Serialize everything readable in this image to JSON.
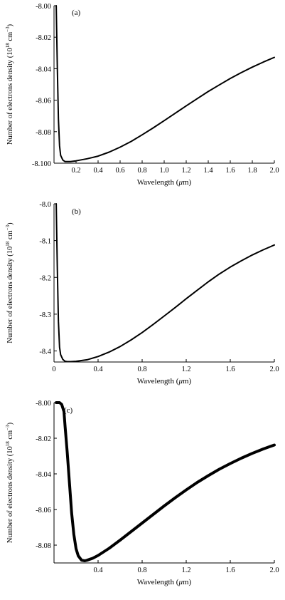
{
  "chart_data": [
    {
      "type": "line",
      "panel_label": "(a)",
      "xlabel_prefix": "Wavelength (",
      "xlabel_mu": "μ",
      "xlabel_suffix": "m)",
      "ylabel": "Number of electrons density (10",
      "ylabel_exp": "18",
      "ylabel_unit": " cm",
      "ylabel_unit_exp": "−3",
      "ylabel_close": ")",
      "xlim": [
        0.0,
        2.0
      ],
      "ylim": [
        -8.1,
        -8.0
      ],
      "xticks": [
        0.2,
        0.4,
        0.6,
        0.8,
        1.0,
        1.2,
        1.4,
        1.6,
        1.8,
        2.0
      ],
      "xtick_labels": [
        "0.2",
        "0.4",
        "0.6",
        "0.8",
        "1.0",
        "1.2",
        "1.4",
        "1.6",
        "1.8",
        "2.0"
      ],
      "yticks": [
        -8.1,
        -8.08,
        -8.06,
        -8.04,
        -8.02,
        -8.0
      ],
      "ytick_labels": [
        "-8.100",
        "-8.08",
        "-8.06",
        "-8.04",
        "-8.02",
        "-8.00"
      ],
      "series": [
        {
          "x": [
            0.02,
            0.03,
            0.04,
            0.05,
            0.06,
            0.08,
            0.1,
            0.12,
            0.15,
            0.2,
            0.3,
            0.4,
            0.5,
            0.6,
            0.7,
            0.8,
            0.9,
            1.0,
            1.1,
            1.2,
            1.3,
            1.4,
            1.5,
            1.6,
            1.7,
            1.8,
            1.9,
            2.0
          ],
          "y": [
            -8.0,
            -8.04,
            -8.072,
            -8.089,
            -8.095,
            -8.098,
            -8.099,
            -8.099,
            -8.099,
            -8.0985,
            -8.0972,
            -8.0955,
            -8.093,
            -8.0898,
            -8.0862,
            -8.082,
            -8.0776,
            -8.073,
            -8.0683,
            -8.0636,
            -8.059,
            -8.0545,
            -8.0503,
            -8.0462,
            -8.0425,
            -8.039,
            -8.0358,
            -8.0328
          ]
        }
      ]
    },
    {
      "type": "line",
      "panel_label": "(b)",
      "xlabel_prefix": "Wavelength (",
      "xlabel_mu": "μ",
      "xlabel_suffix": "m)",
      "ylabel": "Number of electrons density (10",
      "ylabel_exp": "18",
      "ylabel_unit": " cm",
      "ylabel_unit_exp": "−3",
      "ylabel_close": ")",
      "xlim": [
        0.0,
        2.0
      ],
      "ylim": [
        -8.43,
        -8.0
      ],
      "xticks": [
        0,
        0.4,
        0.8,
        1.2,
        1.6,
        2.0
      ],
      "xtick_labels": [
        "0",
        "0.4",
        "0.8",
        "1.2",
        "1.6",
        "2.0"
      ],
      "yticks": [
        -8.4,
        -8.3,
        -8.2,
        -8.1,
        -8.0
      ],
      "ytick_labels": [
        "-8.4",
        "-8.3",
        "-8.2",
        "-8.1",
        "-8.0"
      ],
      "series": [
        {
          "x": [
            0.02,
            0.03,
            0.04,
            0.05,
            0.06,
            0.08,
            0.1,
            0.12,
            0.15,
            0.2,
            0.3,
            0.4,
            0.5,
            0.6,
            0.7,
            0.8,
            0.9,
            1.0,
            1.1,
            1.2,
            1.3,
            1.4,
            1.5,
            1.6,
            1.7,
            1.8,
            1.9,
            2.0
          ],
          "y": [
            -8.0,
            -8.18,
            -8.32,
            -8.39,
            -8.41,
            -8.423,
            -8.428,
            -8.429,
            -8.429,
            -8.428,
            -8.424,
            -8.415,
            -8.403,
            -8.388,
            -8.37,
            -8.35,
            -8.328,
            -8.305,
            -8.282,
            -8.258,
            -8.235,
            -8.212,
            -8.191,
            -8.172,
            -8.155,
            -8.139,
            -8.125,
            -8.112
          ]
        }
      ]
    },
    {
      "type": "line",
      "panel_label": "(c)",
      "xlabel_prefix": "Wavelength (",
      "xlabel_mu": "μ",
      "xlabel_suffix": "m)",
      "ylabel": "Number of electrons density (10",
      "ylabel_exp": "18",
      "ylabel_unit": " cm",
      "ylabel_unit_exp": "−3",
      "ylabel_close": ")",
      "xlim": [
        0.0,
        2.0
      ],
      "ylim": [
        -8.09,
        -8.0
      ],
      "xticks": [
        0.4,
        0.8,
        1.2,
        1.6,
        2.0
      ],
      "xtick_labels": [
        "0.4",
        "0.8",
        "1.2",
        "1.6",
        "2.0"
      ],
      "yticks": [
        -8.08,
        -8.06,
        -8.04,
        -8.02,
        -8.0
      ],
      "ytick_labels": [
        "-8.08",
        "-8.06",
        "-8.04",
        "-8.02",
        "-8.00"
      ],
      "series": [
        {
          "x": [
            0.02,
            0.05,
            0.07,
            0.09,
            0.1,
            0.12,
            0.14,
            0.16,
            0.18,
            0.2,
            0.22,
            0.25,
            0.28,
            0.3,
            0.35,
            0.4,
            0.5,
            0.6,
            0.7,
            0.8,
            0.9,
            1.0,
            1.1,
            1.2,
            1.3,
            1.4,
            1.5,
            1.6,
            1.7,
            1.8,
            1.9,
            2.0
          ],
          "y": [
            -8.0,
            -8.0,
            -8.001,
            -8.005,
            -8.013,
            -8.028,
            -8.045,
            -8.062,
            -8.074,
            -8.082,
            -8.086,
            -8.0885,
            -8.0888,
            -8.0885,
            -8.0874,
            -8.0858,
            -8.0818,
            -8.0772,
            -8.0724,
            -8.0676,
            -8.0628,
            -8.058,
            -8.0534,
            -8.049,
            -8.0448,
            -8.041,
            -8.0374,
            -8.0342,
            -8.0312,
            -8.0285,
            -8.026,
            -8.0238
          ]
        }
      ]
    }
  ]
}
